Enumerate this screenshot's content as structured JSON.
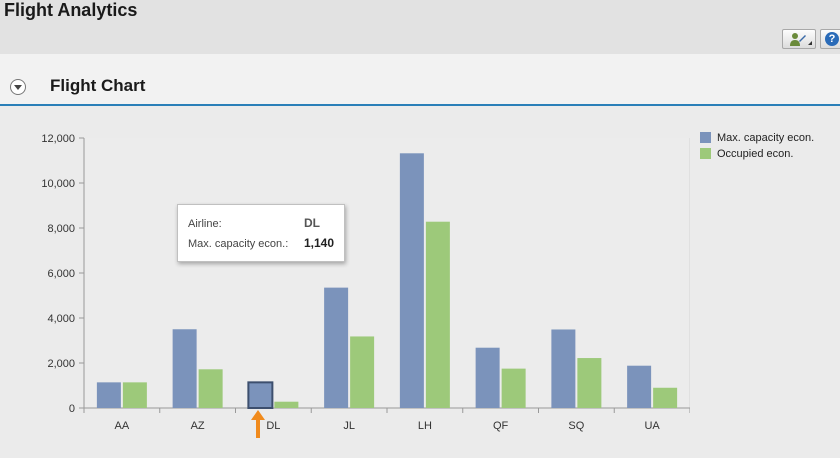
{
  "app": {
    "title": "Flight Analytics"
  },
  "toolbar": {
    "personalize_icon": "personalize-user-icon",
    "help_icon": "help-icon",
    "help_glyph": "?"
  },
  "panel": {
    "title": "Flight Chart",
    "collapse_icon": "collapse-chevron-icon"
  },
  "colors": {
    "capacity": "#7b93bb",
    "occupied": "#9dc97a",
    "accent": "#2a7fb8",
    "arrow": "#f08a1c"
  },
  "chart_data": {
    "type": "bar",
    "categories": [
      "AA",
      "AZ",
      "DL",
      "JL",
      "LH",
      "QF",
      "SQ",
      "UA"
    ],
    "series": [
      {
        "name": "Max. capacity econ.",
        "values": [
          1140,
          3500,
          1140,
          5350,
          11320,
          2680,
          3490,
          1880
        ]
      },
      {
        "name": "Occupied econ.",
        "values": [
          1140,
          1720,
          280,
          3180,
          8280,
          1750,
          2220,
          900
        ]
      }
    ],
    "yticks": [
      "0",
      "2,000",
      "4,000",
      "6,000",
      "8,000",
      "10,000",
      "12,000"
    ],
    "ylim": [
      0,
      12000
    ],
    "legend": "top-right",
    "grid": false,
    "highlighted_category": "DL"
  },
  "tooltip": {
    "airline_label": "Airline:",
    "airline_value": "DL",
    "capacity_label": "Max. capacity econ.:",
    "capacity_value": "1,140"
  }
}
